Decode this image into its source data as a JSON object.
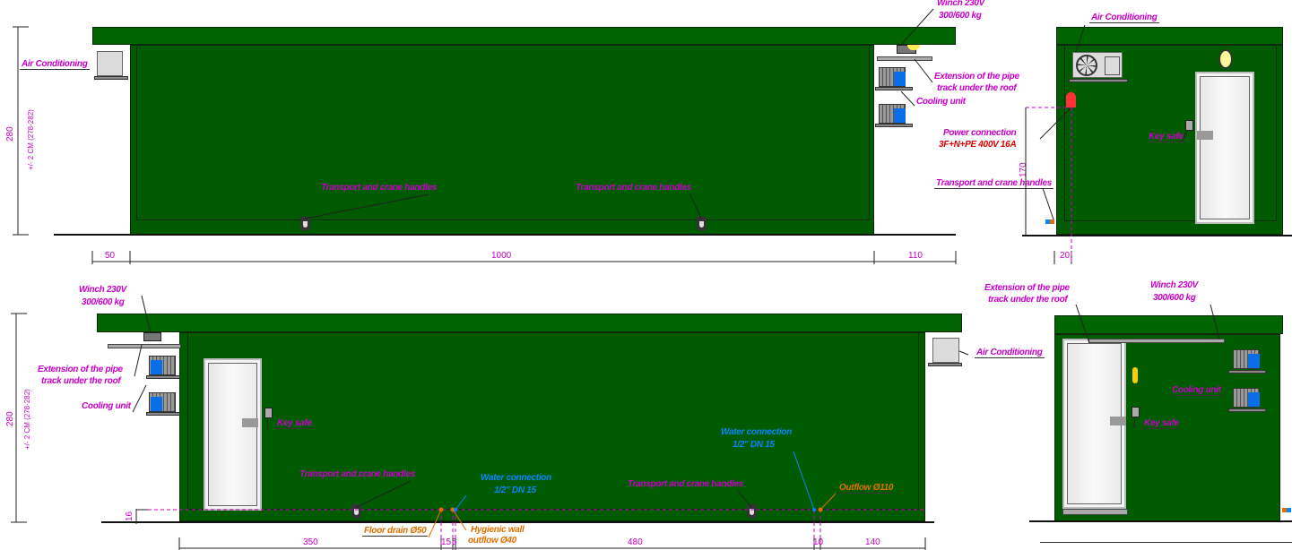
{
  "colors": {
    "container": "#005a00",
    "label": "#c800c8",
    "power": "#e00000",
    "water": "#0a84ff",
    "drain": "#e07000"
  },
  "top_front": {
    "air_conditioning": "Air Conditioning",
    "winch": [
      "Winch 230V",
      "300/600 kg"
    ],
    "pipe_extension": [
      "Extension of the pipe",
      "track under the roof"
    ],
    "cooling_unit": "Cooling unit",
    "power": [
      "Power connection",
      "3F+N+PE 400V 16A"
    ],
    "handles": "Transport and crane handles",
    "height": "280",
    "tolerance": "+/- 2 CM (278-282)",
    "dims": [
      "50",
      "1000",
      "110"
    ]
  },
  "top_side": {
    "air_conditioning": "Air Conditioning",
    "key_safe": "Key safe",
    "handles": "Transport and crane handles",
    "height": "170",
    "dim": "20"
  },
  "bottom_front": {
    "winch": [
      "Winch 230V",
      "300/600 kg"
    ],
    "pipe_extension": [
      "Extension of the pipe",
      "track under the roof"
    ],
    "cooling_unit": "Cooling unit",
    "key_safe": "Key safe",
    "handles": "Transport and crane handles",
    "water": [
      "Water connection",
      "1/2\" DN 15"
    ],
    "floor_drain": "Floor drain Ø50",
    "hygienic": [
      "Hygienic wall",
      "outflow Ø40"
    ],
    "outflow": "Outflow Ø110",
    "air_conditioning": "Air Conditioning",
    "height": "280",
    "tolerance": "+/- 2 CM (278-282)",
    "floor_height": "16",
    "dims": [
      "350",
      "15",
      "5",
      "480",
      "10",
      "140"
    ]
  },
  "bottom_side": {
    "pipe_extension": [
      "Extension of the pipe",
      "track under the roof"
    ],
    "winch": [
      "Winch 230V",
      "300/600 kg"
    ],
    "cooling_unit": "Cooling unit",
    "key_safe": "Key safe"
  }
}
